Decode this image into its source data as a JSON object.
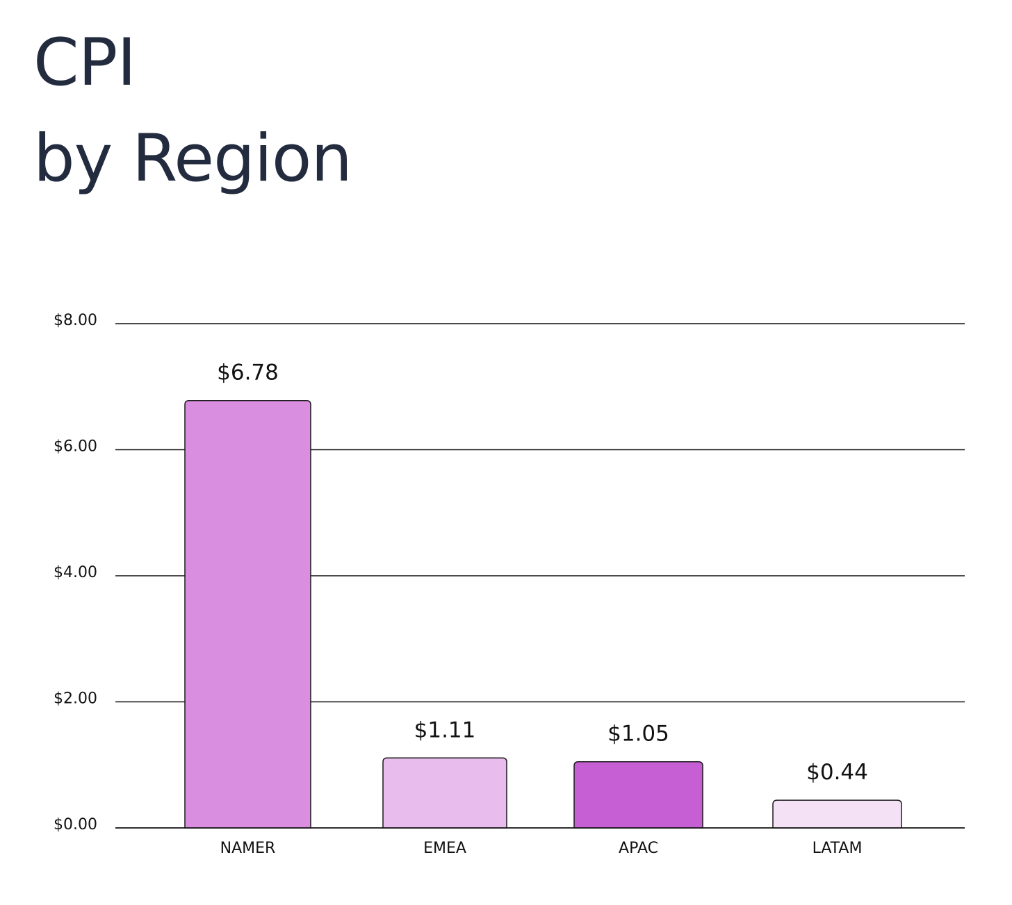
{
  "title_lines": [
    "CPI",
    "by Region"
  ],
  "chart_data": {
    "type": "bar",
    "title": "CPI by Region",
    "categories": [
      "NAMER",
      "EMEA",
      "APAC",
      "LATAM"
    ],
    "values": [
      6.78,
      1.11,
      1.05,
      0.44
    ],
    "data_labels": [
      "$6.78",
      "$1.11",
      "$1.05",
      "$0.44"
    ],
    "colors": [
      "#da8ee0",
      "#e8bcec",
      "#c65fd4",
      "#f5e1f6"
    ],
    "xlabel": "",
    "ylabel": "",
    "ylim": [
      0,
      8
    ],
    "yticks": [
      0,
      2,
      4,
      6,
      8
    ],
    "ytick_labels": [
      "$0.00",
      "$2.00",
      "$4.00",
      "$6.00",
      "$8.00"
    ],
    "grid": true,
    "legend": "none"
  }
}
